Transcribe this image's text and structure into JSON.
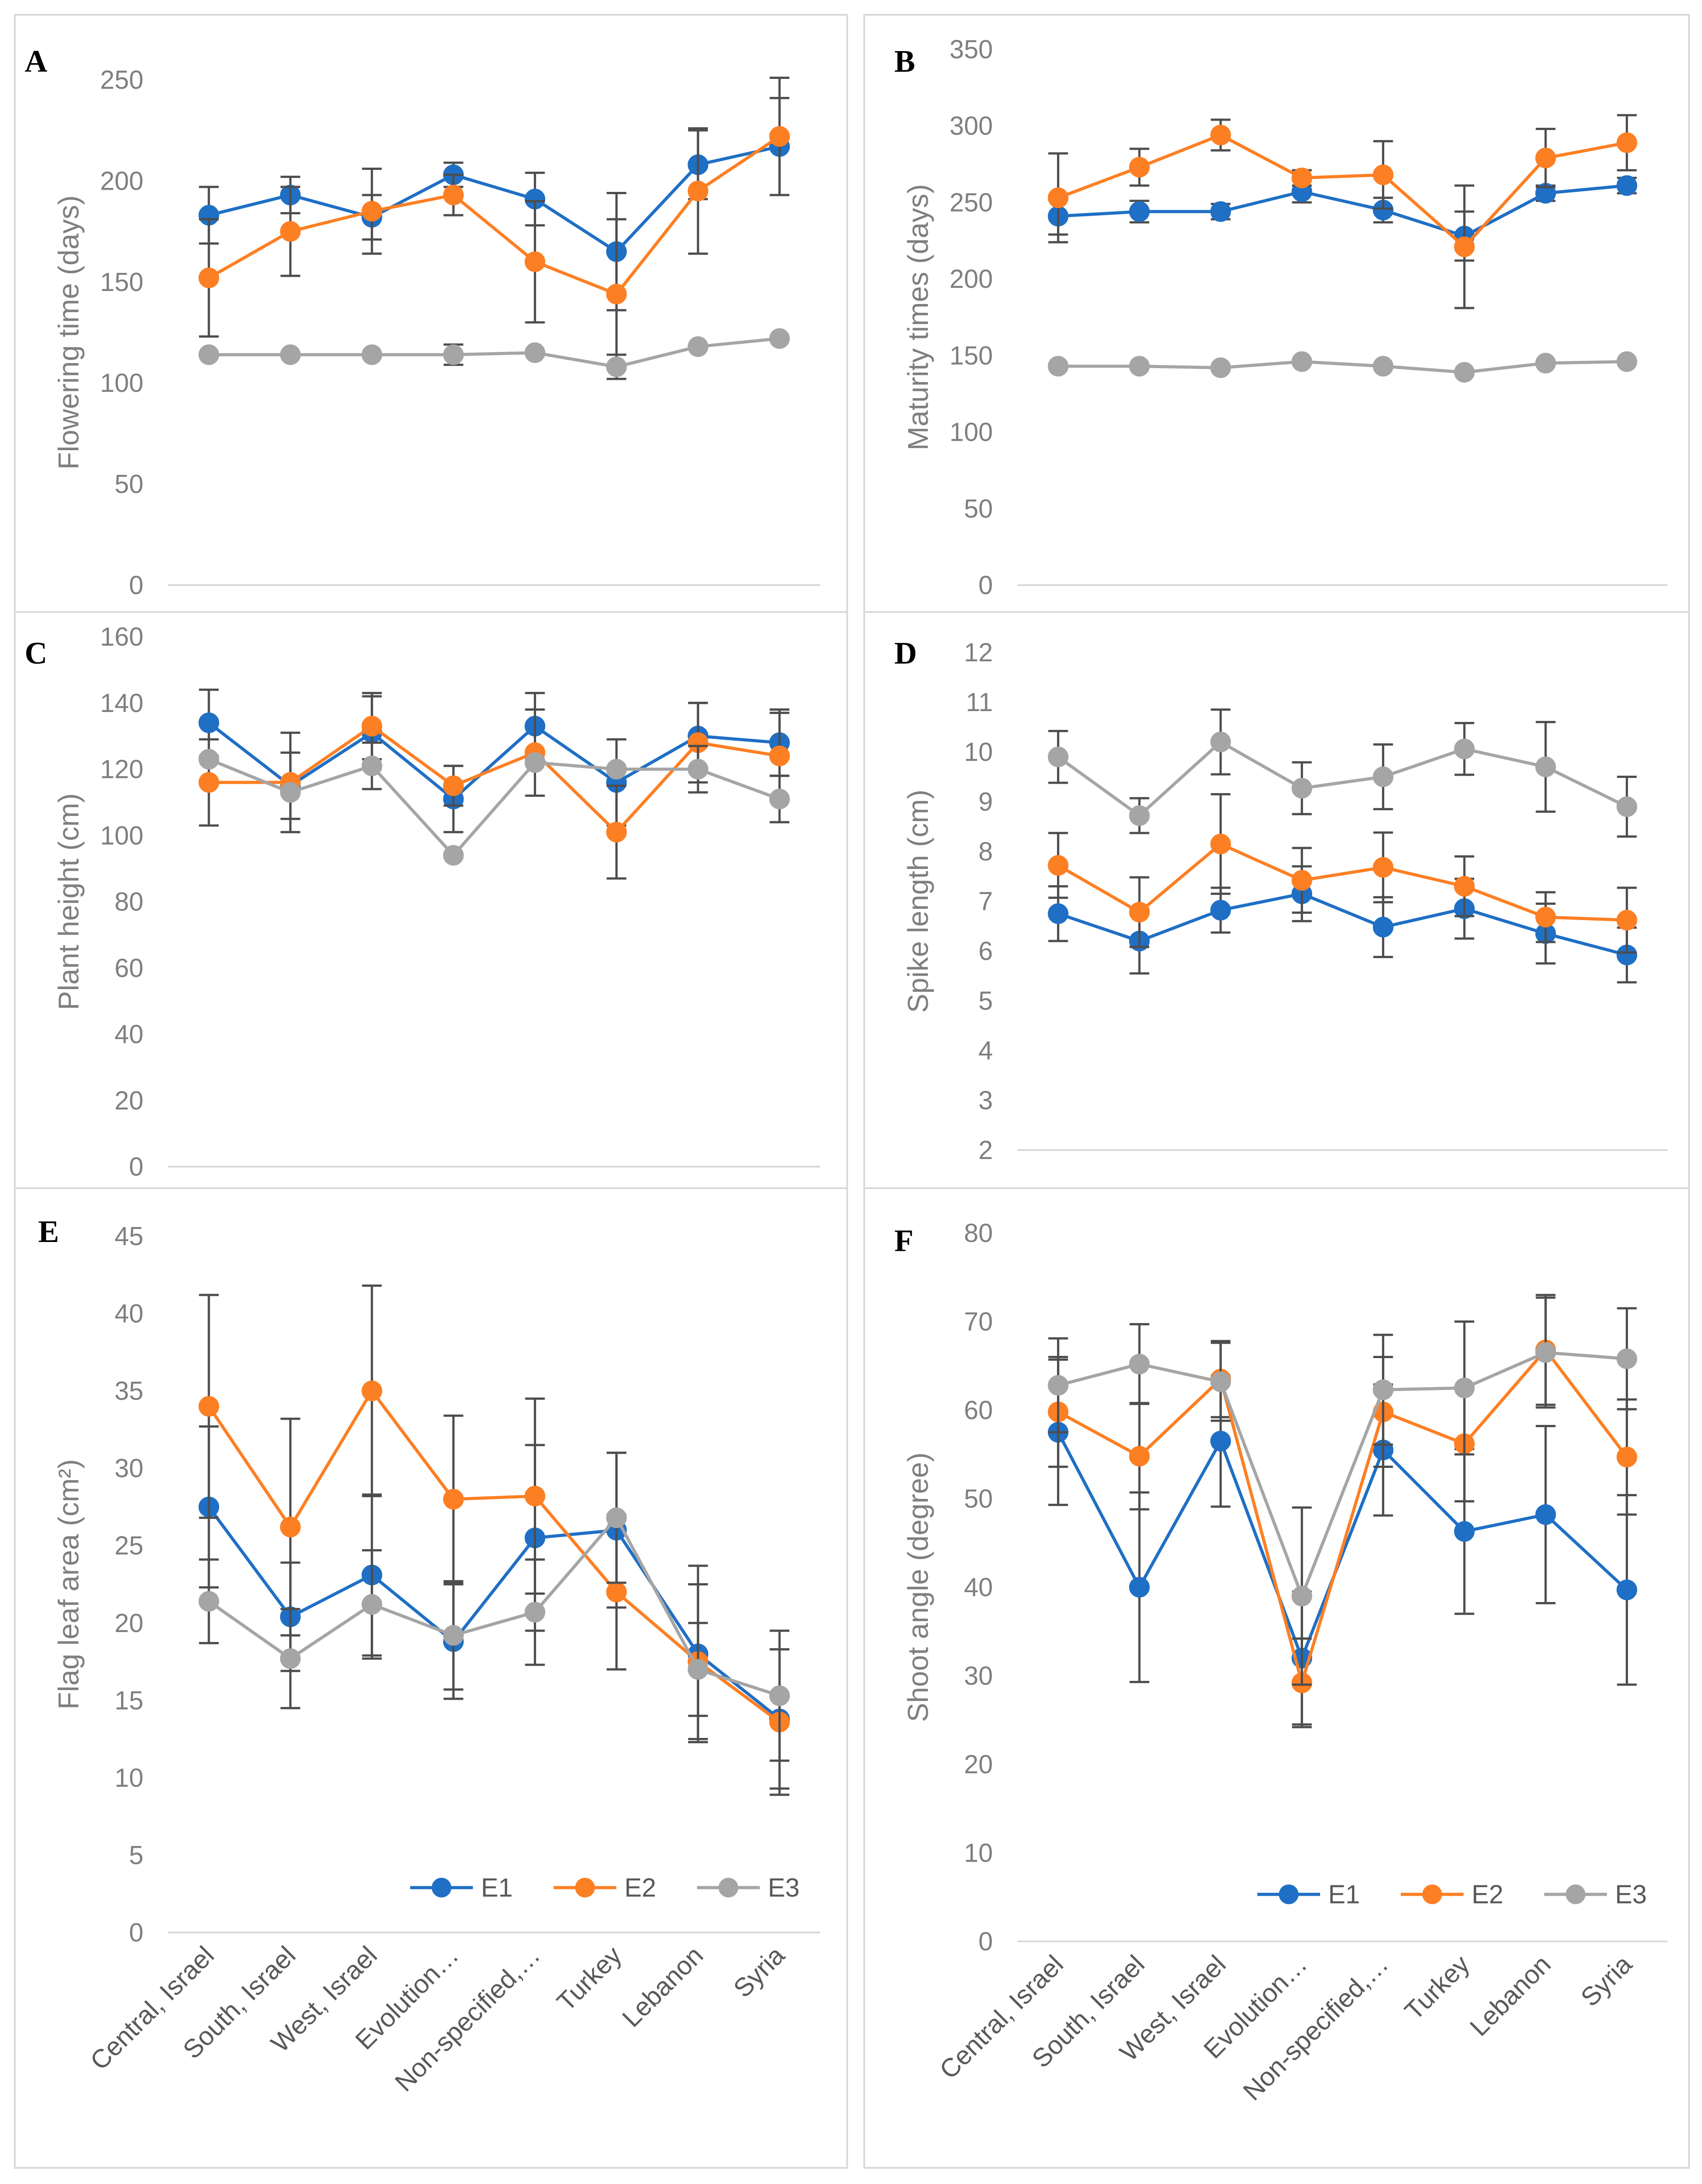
{
  "colors": {
    "E1": "#1f6fc5",
    "E2": "#fd7f23",
    "E3": "#a5a5a5",
    "error_bar": "#4d4d4d",
    "axis_text": "#7f7f7f",
    "frame": "#d9d9d9"
  },
  "categories": [
    "Central, Israel",
    "South, Israel",
    "West, Israel",
    "Evolution…",
    "Non-specified,…",
    "Turkey",
    "Lebanon",
    "Syria"
  ],
  "chart_data": [
    {
      "panel": "A",
      "type": "line",
      "ylabel": "Flowering time (days)",
      "ylim": [
        0,
        250
      ],
      "yticks": [
        0,
        50,
        100,
        150,
        200,
        250
      ],
      "ytick_labels": [
        "0",
        "50",
        "100",
        "150",
        "200",
        "250"
      ],
      "show_x_labels": false,
      "legend": null,
      "series": [
        {
          "name": "E1",
          "values": [
            183,
            193,
            182,
            203,
            191,
            165,
            208,
            217
          ],
          "err": [
            14,
            9,
            11,
            6,
            13,
            29,
            17,
            24
          ]
        },
        {
          "name": "E2",
          "values": [
            152,
            175,
            185,
            193,
            160,
            144,
            195,
            222
          ],
          "err": [
            29,
            22,
            21,
            10,
            30,
            37,
            31,
            29
          ]
        },
        {
          "name": "E3",
          "values": [
            114,
            114,
            114,
            114,
            115,
            108,
            118,
            122
          ],
          "err": [
            0,
            0,
            0,
            5,
            0,
            6,
            0,
            0
          ]
        }
      ]
    },
    {
      "panel": "B",
      "type": "line",
      "ylabel": "Maturity times (days)",
      "ylim": [
        0,
        350
      ],
      "yticks": [
        0,
        50,
        100,
        150,
        200,
        250,
        300,
        350
      ],
      "ytick_labels": [
        "0",
        "50",
        "100",
        "150",
        "200",
        "250",
        "300",
        "350"
      ],
      "show_x_labels": false,
      "legend": null,
      "series": [
        {
          "name": "E1",
          "values": [
            241,
            244,
            244,
            257,
            245,
            228,
            256,
            261
          ],
          "err": [
            12,
            7,
            5,
            7,
            8,
            16,
            5,
            5
          ]
        },
        {
          "name": "E2",
          "values": [
            253,
            273,
            294,
            266,
            268,
            221,
            279,
            289
          ],
          "err": [
            29,
            12,
            10,
            5,
            22,
            40,
            19,
            18
          ]
        },
        {
          "name": "E3",
          "values": [
            143,
            143,
            142,
            146,
            143,
            139,
            145,
            146
          ],
          "err": [
            0,
            0,
            0,
            0,
            0,
            0,
            0,
            0
          ]
        }
      ]
    },
    {
      "panel": "C",
      "type": "line",
      "ylabel": "Plant height (cm)",
      "ylim": [
        0,
        160
      ],
      "yticks": [
        0,
        20,
        40,
        60,
        80,
        100,
        120,
        140,
        160
      ],
      "ytick_labels": [
        "0",
        "20",
        "40",
        "60",
        "80",
        "100",
        "120",
        "140",
        "160"
      ],
      "show_x_labels": false,
      "legend": null,
      "series": [
        {
          "name": "E1",
          "values": [
            134,
            115,
            131,
            111,
            133,
            116,
            130,
            128
          ],
          "err": [
            10,
            10,
            11,
            10,
            10,
            13,
            10,
            10
          ]
        },
        {
          "name": "E2",
          "values": [
            116,
            116,
            133,
            115,
            125,
            101,
            128,
            124
          ],
          "err": [
            13,
            15,
            10,
            6,
            13,
            14,
            12,
            13
          ]
        },
        {
          "name": "E3",
          "values": [
            123,
            113,
            121,
            94,
            122,
            120,
            120,
            111
          ],
          "err": [
            0,
            0,
            7,
            0,
            0,
            0,
            7,
            7
          ]
        }
      ]
    },
    {
      "panel": "D",
      "type": "line",
      "ylabel": "Spike length (cm)",
      "ylim": [
        2,
        12
      ],
      "yticks": [
        2,
        3,
        4,
        5,
        6,
        7,
        8,
        9,
        10,
        11,
        12
      ],
      "ytick_labels": [
        "2",
        "3",
        "4",
        "5",
        "6",
        "7",
        "8",
        "9",
        "10",
        "11",
        "12"
      ],
      "show_x_labels": false,
      "legend": null,
      "series": [
        {
          "name": "E1",
          "values": [
            6.75,
            6.2,
            6.82,
            7.15,
            6.48,
            6.85,
            6.35,
            5.92
          ],
          "err": [
            0.55,
            0.65,
            0.45,
            0.55,
            0.6,
            0.6,
            0.6,
            0.55
          ]
        },
        {
          "name": "E2",
          "values": [
            7.72,
            6.78,
            8.15,
            7.42,
            7.68,
            7.3,
            6.68,
            6.62
          ],
          "err": [
            0.65,
            0.7,
            1.0,
            0.65,
            0.7,
            0.6,
            0.5,
            0.65
          ]
        },
        {
          "name": "E3",
          "values": [
            9.9,
            8.72,
            10.2,
            9.27,
            9.5,
            10.06,
            9.7,
            8.9
          ],
          "err": [
            0.52,
            0.35,
            0.65,
            0.52,
            0.65,
            0.52,
            0.9,
            0.6
          ]
        }
      ]
    },
    {
      "panel": "E",
      "type": "line",
      "ylabel": "Flag leaf area (cm²)",
      "ylim": [
        0,
        45
      ],
      "yticks": [
        0,
        5,
        10,
        15,
        20,
        25,
        30,
        35,
        40,
        45
      ],
      "ytick_labels": [
        "0",
        "5",
        "10",
        "15",
        "20",
        "25",
        "30",
        "35",
        "40",
        "45"
      ],
      "show_x_labels": true,
      "legend": "bottom-right",
      "series": [
        {
          "name": "E1",
          "values": [
            27.5,
            20.4,
            23.1,
            18.8,
            25.5,
            26.0,
            18.0,
            13.8
          ],
          "err": [
            5.2,
            3.5,
            5.2,
            3.7,
            6.0,
            5.0,
            5.7,
            4.5
          ]
        },
        {
          "name": "E2",
          "values": [
            34.0,
            26.2,
            35.0,
            28.0,
            28.2,
            22.0,
            17.5,
            13.6
          ],
          "err": [
            7.2,
            7.0,
            6.8,
            5.4,
            6.3,
            5.0,
            5.0,
            4.7
          ]
        },
        {
          "name": "E3",
          "values": [
            21.4,
            17.7,
            21.2,
            19.2,
            20.7,
            26.8,
            17.0,
            15.3
          ],
          "err": [
            2.7,
            3.2,
            3.5,
            3.5,
            3.4,
            4.2,
            3.0,
            4.2
          ]
        }
      ]
    },
    {
      "panel": "F",
      "type": "line",
      "ylabel": "Shoot angle (degree)",
      "ylim": [
        0,
        80
      ],
      "yticks": [
        0,
        10,
        20,
        30,
        40,
        50,
        60,
        70,
        80
      ],
      "ytick_labels": [
        "0",
        "10",
        "20",
        "30",
        "40",
        "50",
        "60",
        "70",
        "80"
      ],
      "show_x_labels": true,
      "legend": "bottom-right",
      "series": [
        {
          "name": "E1",
          "values": [
            57.5,
            40.0,
            56.5,
            32.0,
            55.5,
            46.3,
            48.2,
            39.7
          ],
          "err": [
            8.2,
            10.7,
            7.4,
            7.5,
            7.4,
            9.3,
            10.0,
            10.7
          ]
        },
        {
          "name": "E2",
          "values": [
            59.8,
            54.8,
            63.5,
            29.2,
            59.8,
            56.2,
            66.8,
            54.7
          ],
          "err": [
            6.2,
            6.0,
            4.3,
            5.0,
            6.2,
            6.5,
            6.2,
            6.5
          ]
        },
        {
          "name": "E3",
          "values": [
            62.8,
            65.2,
            63.2,
            39.0,
            62.3,
            62.5,
            66.5,
            65.8
          ],
          "err": [
            5.3,
            4.5,
            4.4,
            10.0,
            6.2,
            7.5,
            6.2,
            5.7
          ]
        }
      ]
    }
  ]
}
